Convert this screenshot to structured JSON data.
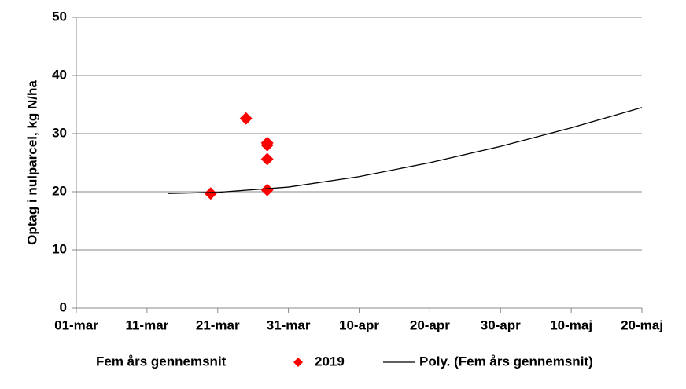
{
  "chart_data": {
    "type": "scatter",
    "ylabel": "Optag i nulparcel, kg N/ha",
    "xlim": [
      0,
      80
    ],
    "xticks": [
      {
        "value": 0,
        "label": "01-mar"
      },
      {
        "value": 10,
        "label": "11-mar"
      },
      {
        "value": 20,
        "label": "21-mar"
      },
      {
        "value": 30,
        "label": "31-mar"
      },
      {
        "value": 40,
        "label": "10-apr"
      },
      {
        "value": 50,
        "label": "20-apr"
      },
      {
        "value": 60,
        "label": "30-apr"
      },
      {
        "value": 70,
        "label": "10-maj"
      },
      {
        "value": 80,
        "label": "20-maj"
      }
    ],
    "ylim": [
      0,
      50
    ],
    "yticks": [
      0,
      10,
      20,
      30,
      40,
      50
    ],
    "grid": true,
    "series": [
      {
        "name": "Fem års gennemsnit",
        "kind": "none",
        "color": "#ffffff",
        "x": [],
        "values": []
      },
      {
        "name": "2019",
        "kind": "diamond",
        "color": "#ff0000",
        "x": [
          19,
          24,
          27,
          27,
          27,
          27
        ],
        "values": [
          19.7,
          32.6,
          28.4,
          28.0,
          25.6,
          20.3
        ]
      },
      {
        "name": "Poly. (Fem års gennemsnit)",
        "kind": "line",
        "color": "#000000",
        "x": [
          13,
          20,
          30,
          40,
          50,
          60,
          70,
          80
        ],
        "values": [
          19.7,
          19.9,
          20.8,
          22.6,
          25.0,
          27.8,
          31.0,
          34.5
        ]
      }
    ]
  }
}
